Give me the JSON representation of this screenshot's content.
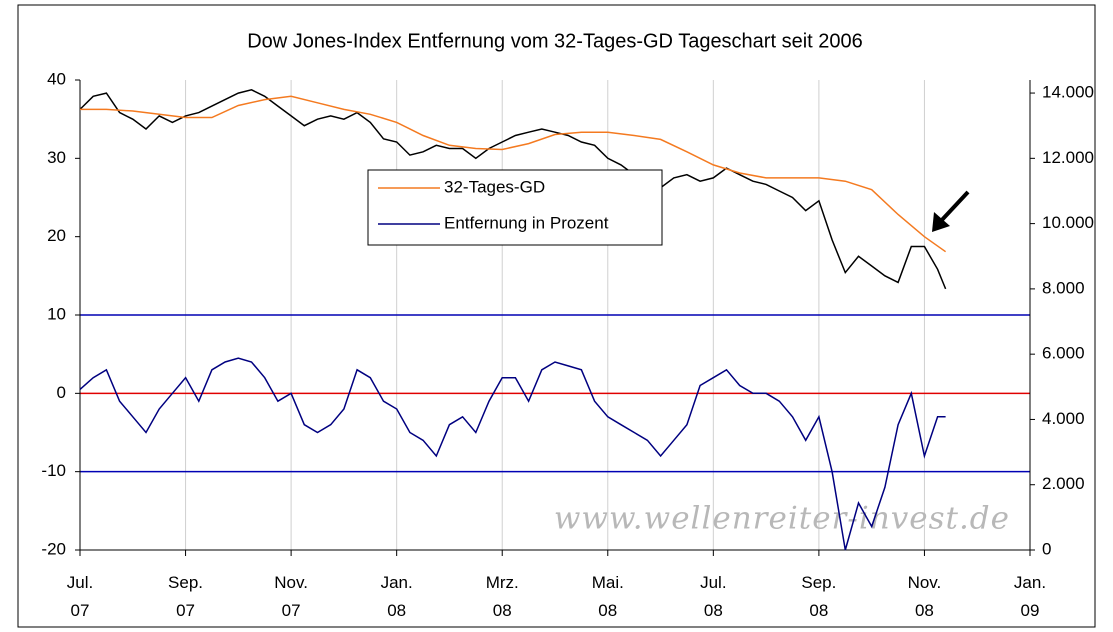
{
  "chart_data": {
    "type": "line",
    "title": "Dow Jones-Index Entfernung vom 32-Tages-GD Tageschart seit 2006",
    "watermark": "www.wellenreiter-invest.de",
    "xlim": [
      0,
      18
    ],
    "xticks": [
      {
        "value": 0,
        "label": "Jul. 07"
      },
      {
        "value": 2,
        "label": "Sep. 07"
      },
      {
        "value": 4,
        "label": "Nov. 07"
      },
      {
        "value": 6,
        "label": "Jan. 08"
      },
      {
        "value": 8,
        "label": "Mrz. 08"
      },
      {
        "value": 10,
        "label": "Mai. 08"
      },
      {
        "value": 12,
        "label": "Jul. 08"
      },
      {
        "value": 14,
        "label": "Sep. 08"
      },
      {
        "value": 16,
        "label": "Nov. 08"
      },
      {
        "value": 18,
        "label": "Jan. 09"
      }
    ],
    "ylim": [
      -20,
      40
    ],
    "yticks": [
      -20,
      -10,
      0,
      10,
      20,
      30,
      40
    ],
    "y2lim": [
      0,
      14400
    ],
    "y2ticks": [
      0,
      {
        "value": 2000,
        "label": "2.000"
      },
      {
        "value": 4000,
        "label": "4.000"
      },
      {
        "value": 6000,
        "label": "6.000"
      },
      {
        "value": 8000,
        "label": "8.000"
      },
      {
        "value": 10000,
        "label": "10.000"
      },
      {
        "value": 12000,
        "label": "12.000"
      },
      {
        "value": 14000,
        "label": "14.000"
      }
    ],
    "grid": true,
    "reference_lines": [
      {
        "value": 10,
        "color": "#0000b4"
      },
      {
        "value": 0,
        "color": "#e00000"
      },
      {
        "value": -10,
        "color": "#0000b4"
      }
    ],
    "series": [
      {
        "color": "#000000",
        "axis": "y2",
        "x": [
          0,
          0.25,
          0.5,
          0.75,
          1,
          1.25,
          1.5,
          1.75,
          2,
          2.25,
          2.5,
          2.75,
          3,
          3.25,
          3.5,
          3.75,
          4,
          4.25,
          4.5,
          4.75,
          5,
          5.25,
          5.5,
          5.75,
          6,
          6.25,
          6.5,
          6.75,
          7,
          7.25,
          7.5,
          7.75,
          8,
          8.25,
          8.5,
          8.75,
          9,
          9.25,
          9.5,
          9.75,
          10,
          10.25,
          10.5,
          10.75,
          11,
          11.25,
          11.5,
          11.75,
          12,
          12.25,
          12.5,
          12.75,
          13,
          13.25,
          13.5,
          13.75,
          14,
          14.25,
          14.5,
          14.75,
          15,
          15.25,
          15.5,
          15.75,
          16,
          16.25,
          16.4
        ],
        "values": [
          13500,
          13900,
          14000,
          13400,
          13200,
          12900,
          13300,
          13100,
          13300,
          13400,
          13600,
          13800,
          14000,
          14100,
          13900,
          13600,
          13300,
          13000,
          13200,
          13300,
          13200,
          13400,
          13100,
          12600,
          12500,
          12100,
          12200,
          12400,
          12300,
          12300,
          12000,
          12300,
          12500,
          12700,
          12800,
          12900,
          12800,
          12700,
          12500,
          12400,
          12000,
          11800,
          11500,
          11300,
          11100,
          11400,
          11500,
          11300,
          11400,
          11700,
          11500,
          11300,
          11200,
          11000,
          10800,
          10400,
          10700,
          9500,
          8500,
          9000,
          8700,
          8400,
          8200,
          9300,
          9300,
          8600,
          8000
        ]
      },
      {
        "name": "32-Tages-GD",
        "color": "#f47a20",
        "axis": "y2",
        "x": [
          0,
          0.5,
          1,
          1.5,
          2,
          2.5,
          3,
          3.5,
          4,
          4.5,
          5,
          5.5,
          6,
          6.5,
          7,
          7.5,
          8,
          8.5,
          9,
          9.5,
          10,
          10.5,
          11,
          11.5,
          12,
          12.5,
          13,
          13.5,
          14,
          14.5,
          15,
          15.5,
          16,
          16.4
        ],
        "values": [
          13500,
          13500,
          13450,
          13350,
          13250,
          13250,
          13620,
          13800,
          13900,
          13700,
          13500,
          13350,
          13100,
          12700,
          12400,
          12300,
          12270,
          12450,
          12730,
          12800,
          12800,
          12700,
          12580,
          12200,
          11800,
          11550,
          11400,
          11400,
          11400,
          11300,
          11040,
          10280,
          9600,
          9140
        ]
      },
      {
        "name": "Entfernung in Prozent",
        "color": "#000080",
        "axis": "y",
        "x": [
          0,
          0.25,
          0.5,
          0.75,
          1,
          1.25,
          1.5,
          1.75,
          2,
          2.25,
          2.5,
          2.75,
          3,
          3.25,
          3.5,
          3.75,
          4,
          4.25,
          4.5,
          4.75,
          5,
          5.25,
          5.5,
          5.75,
          6,
          6.25,
          6.5,
          6.75,
          7,
          7.25,
          7.5,
          7.75,
          8,
          8.25,
          8.5,
          8.75,
          9,
          9.25,
          9.5,
          9.75,
          10,
          10.25,
          10.5,
          10.75,
          11,
          11.25,
          11.5,
          11.75,
          12,
          12.25,
          12.5,
          12.75,
          13,
          13.25,
          13.5,
          13.75,
          14,
          14.25,
          14.5,
          14.75,
          15,
          15.25,
          15.5,
          15.75,
          16,
          16.25,
          16.4
        ],
        "values": [
          0.5,
          2,
          3,
          -1,
          -3,
          -5,
          -2,
          0,
          2,
          -1,
          3,
          4,
          4.5,
          4,
          2,
          -1,
          0,
          -4,
          -5,
          -4,
          -2,
          3,
          2,
          -1,
          -2,
          -5,
          -6,
          -8,
          -4,
          -3,
          -5,
          -1,
          2,
          2,
          -1,
          3,
          4,
          3.5,
          3,
          -1,
          -3,
          -4,
          -5,
          -6,
          -8,
          -6,
          -4,
          1,
          2,
          3,
          1,
          0,
          0,
          -1,
          -3,
          -6,
          -3,
          -10,
          -20,
          -14,
          -17,
          -12,
          -4,
          0,
          -8,
          -3,
          -3
        ]
      }
    ]
  }
}
